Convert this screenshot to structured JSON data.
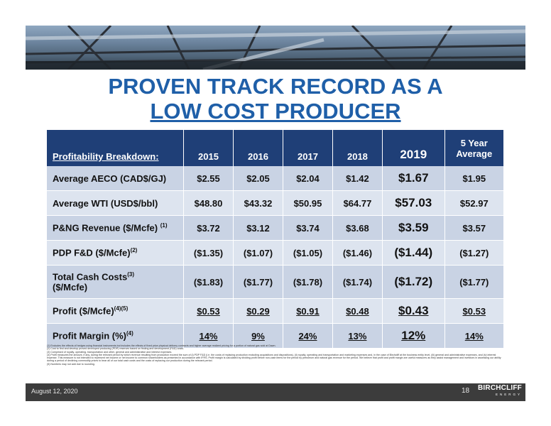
{
  "title": {
    "line1": "PROVEN TRACK RECORD AS A",
    "line2": "LOW COST PRODUCER"
  },
  "table": {
    "header": {
      "label": "Profitability Breakdown:",
      "cols": [
        "2015",
        "2016",
        "2017",
        "2018",
        "2019",
        "5 Year Average"
      ]
    },
    "rows": [
      {
        "label": "Average AECO (CAD$/GJ)",
        "sup": "",
        "values": [
          "$2.55",
          "$2.05",
          "$2.04",
          "$1.42",
          "$1.67",
          "$1.95"
        ]
      },
      {
        "label": "Average WTI (USD$/bbl)",
        "sup": "",
        "values": [
          "$48.80",
          "$43.32",
          "$50.95",
          "$64.77",
          "$57.03",
          "$52.97"
        ]
      },
      {
        "label": "P&NG Revenue ($/Mcfe) ",
        "sup": "(1)",
        "values": [
          "$3.72",
          "$3.12",
          "$3.74",
          "$3.68",
          "$3.59",
          "$3.57"
        ]
      },
      {
        "label": "PDP F&D ($/Mcfe)",
        "sup": "(2)",
        "values": [
          "($1.35)",
          "($1.07)",
          "($1.05)",
          "($1.46)",
          "($1.44)",
          "($1.27)"
        ]
      },
      {
        "label": "Total Cash Costs",
        "sup": "(3)",
        "label2": "($/Mcfe)",
        "values": [
          "($1.83)",
          "($1.77)",
          "($1.78)",
          "($1.74)",
          "($1.72)",
          "($1.77)"
        ]
      },
      {
        "label": "Profit ($/Mcfe)",
        "sup": "(4)(5)",
        "values": [
          "$0.53",
          "$0.29",
          "$0.91",
          "$0.48",
          "$0.43",
          "$0.53"
        ]
      },
      {
        "label": "Profit Margin (%)",
        "sup": "(4)",
        "values": [
          "14%",
          "9%",
          "24%",
          "13%",
          "12%",
          "14%"
        ]
      }
    ]
  },
  "notes": [
    "(1) Excludes the effects of hedges using financial instruments but includes the effects of fixed price physical delivery contracts and higher average realized pricing for a portion of natural gas sold at Dawn.",
    "(2) Cost to find and develop proved developed producing (PDP) reserves based on finding and development (F&D) costs.",
    "(3) Comprised of royalty, operating, transportation and other, general and administrative and interest expenses.",
    "(4) Profit measures the amount, if any, during the relevant period by which revenue resulting from production exceed the sum of (i) PDP F&D (i.e. the costs of replacing production excluding acquisitions and dispositions), (ii) royalty, operating and transportation and marketing expenses and, in the case of Birchcliff at the business entity level, (iii) general and administrative expenses, and (iv) interest expense. This measure is not intended to represent net income or net income to common shareholders as presented in accordance with IFRS. Profit margin is calculated by dividing profit before non-cash items for the period by petroleum and natural gas revenue for the period. We believe that profit and profit margin are useful measures as they assist management and investors in assessing our ability during a period of declining commodity prices to bear all of our total cash costs and the costs of replacing our production during the relevant period.",
    "(5) Numbers may not add due to rounding."
  ],
  "footer": {
    "date": "August 12, 2020",
    "page": "18",
    "logo": "BIRCHCLIFF",
    "logo_sub": "ENERGY"
  }
}
